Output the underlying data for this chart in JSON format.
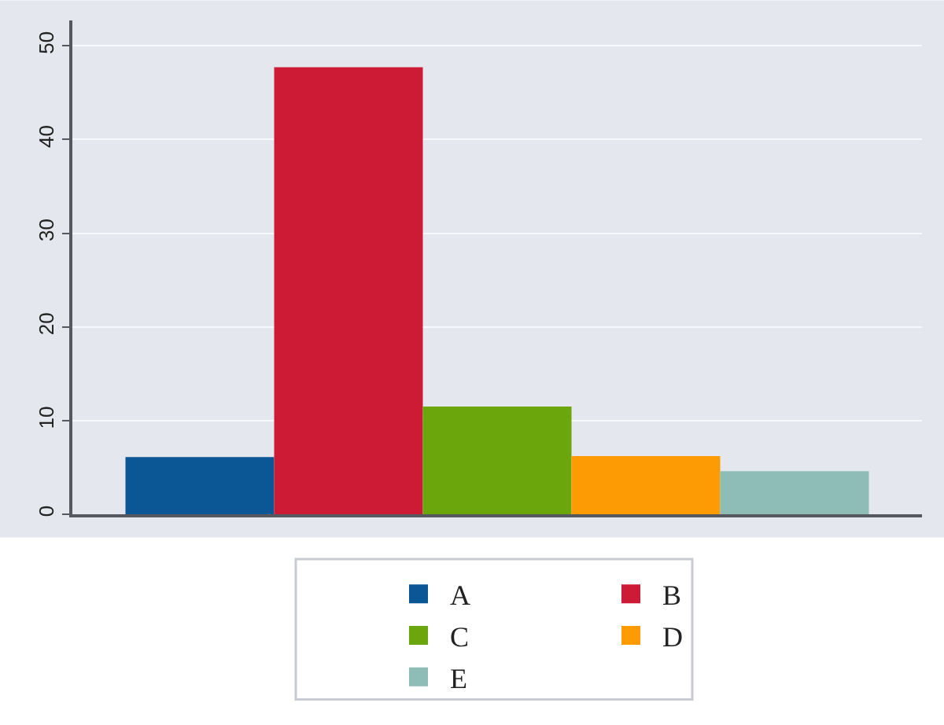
{
  "chart_data": {
    "type": "bar",
    "categories": [
      null
    ],
    "series": [
      {
        "name": "A",
        "color": "#0b5694",
        "values": [
          6.1
        ]
      },
      {
        "name": "B",
        "color": "#cd1a35",
        "values": [
          47.7
        ]
      },
      {
        "name": "C",
        "color": "#6aa60c",
        "values": [
          11.5
        ]
      },
      {
        "name": "D",
        "color": "#fd9b04",
        "values": [
          6.2
        ]
      },
      {
        "name": "E",
        "color": "#8dbdb6",
        "values": [
          4.6
        ]
      }
    ],
    "ylim": [
      0,
      52.7
    ],
    "yticks": [
      0,
      10,
      20,
      30,
      40,
      50
    ],
    "grid": "y",
    "legend": "bottom",
    "tick_labels": "y"
  }
}
